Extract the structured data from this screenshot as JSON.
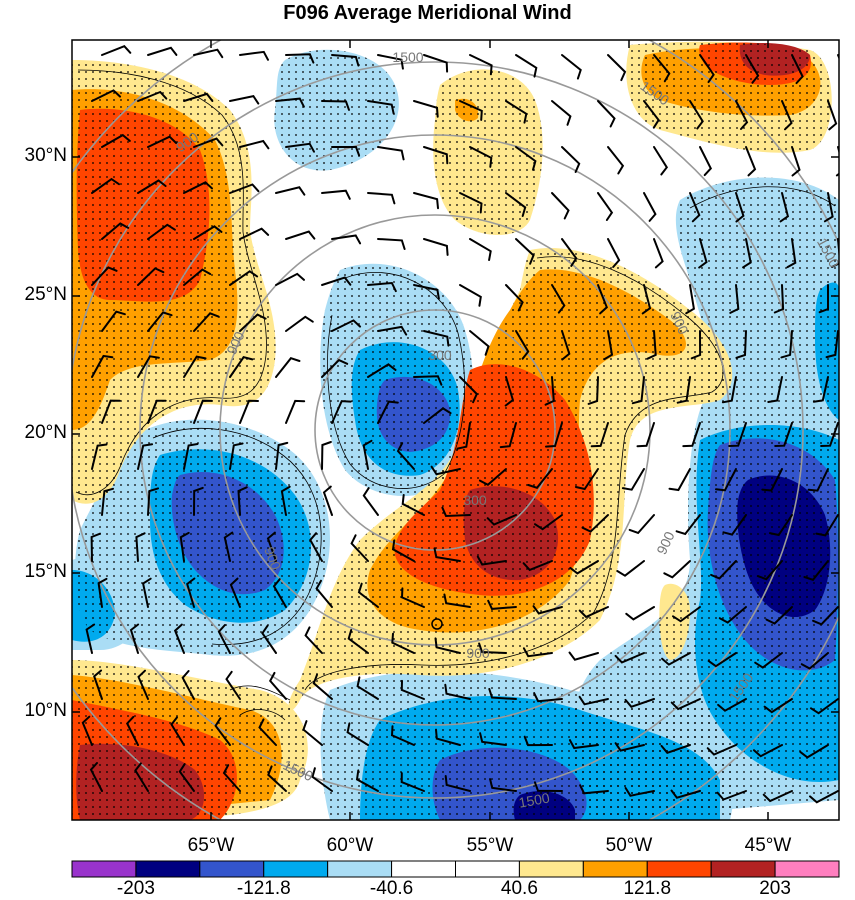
{
  "title": "F096 Average Meridional Wind",
  "lat_labels": [
    "30°N",
    "25°N",
    "20°N",
    "15°N",
    "10°N"
  ],
  "lon_labels": [
    "65°W",
    "60°W",
    "55°W",
    "50°W",
    "45°W"
  ],
  "ring_labels": [
    "1500",
    "900",
    "300"
  ],
  "colorbar": {
    "colors": [
      "#9933cc",
      "#000080",
      "#3355cc",
      "#00aaee",
      "#aaddf5",
      "#ffffff",
      "#ffffff",
      "#ffe88f",
      "#ffa000",
      "#ff4500",
      "#b22222",
      "#ff7fbf"
    ],
    "labels": [
      "-203",
      "-121.8",
      "-40.6",
      "40.6",
      "121.8",
      "203"
    ]
  }
}
